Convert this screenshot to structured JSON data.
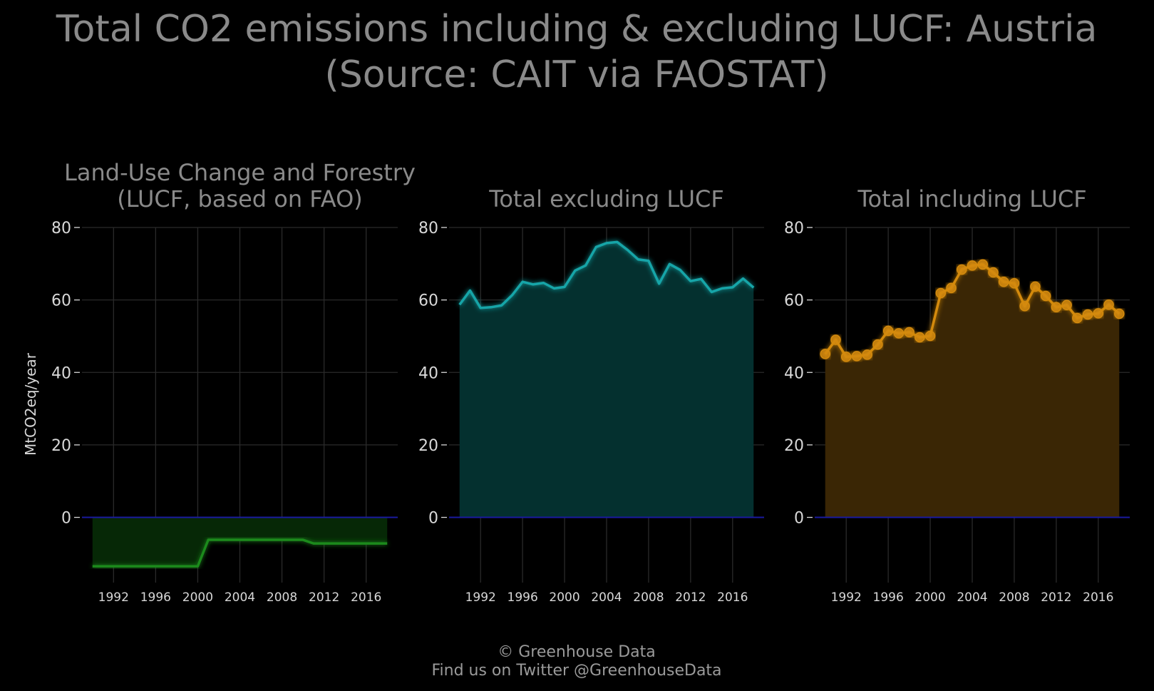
{
  "title_line1": "Total CO2 emissions including & excluding LUCF: Austria",
  "title_line2": "(Source: CAIT via FAOSTAT)",
  "ylabel": "MtCO2eq/year",
  "footer_line1": "© Greenhouse Data",
  "footer_line2": "Find us on Twitter @GreenhouseData",
  "colors": {
    "background": "#000000",
    "title": "#8a8a8a",
    "zero_line": "#1a1aa0",
    "lucf": "#1a8a1a",
    "excl": "#17a5a8",
    "incl": "#d48a10"
  },
  "chart_data": [
    {
      "type": "area",
      "title": "Land-Use Change and Forestry\n(LUCF, based on FAO)",
      "series_name": "Land-Use Change and Forestry (LUCF, based on FAO)",
      "xlim": [
        1989,
        2019
      ],
      "ylim": [
        -18,
        80
      ],
      "yticks": [
        0,
        20,
        40,
        60,
        80
      ],
      "xticks": [
        1992,
        1996,
        2000,
        2004,
        2008,
        2012,
        2016
      ],
      "markers": false,
      "x": [
        1990,
        1991,
        1992,
        1993,
        1994,
        1995,
        1996,
        1997,
        1998,
        1999,
        2000,
        2001,
        2002,
        2003,
        2004,
        2005,
        2006,
        2007,
        2008,
        2009,
        2010,
        2011,
        2012,
        2013,
        2014,
        2015,
        2016,
        2017,
        2018
      ],
      "y": [
        -13.5,
        -13.5,
        -13.5,
        -13.5,
        -13.5,
        -13.5,
        -13.5,
        -13.5,
        -13.5,
        -13.5,
        -13.5,
        -6.2,
        -6.2,
        -6.2,
        -6.2,
        -6.2,
        -6.2,
        -6.2,
        -6.2,
        -6.2,
        -6.2,
        -7.2,
        -7.2,
        -7.2,
        -7.2,
        -7.2,
        -7.2,
        -7.2,
        -7.2
      ]
    },
    {
      "type": "area",
      "title": "Total excluding LUCF",
      "series_name": "Total excluding LUCF",
      "xlim": [
        1989,
        2019
      ],
      "ylim": [
        -18,
        80
      ],
      "yticks": [
        0,
        20,
        40,
        60,
        80
      ],
      "xticks": [
        1992,
        1996,
        2000,
        2004,
        2008,
        2012,
        2016
      ],
      "markers": false,
      "x": [
        1990,
        1991,
        1992,
        1993,
        1994,
        1995,
        1996,
        1997,
        1998,
        1999,
        2000,
        2001,
        2002,
        2003,
        2004,
        2005,
        2006,
        2007,
        2008,
        2009,
        2010,
        2011,
        2012,
        2013,
        2014,
        2015,
        2016,
        2017,
        2018
      ],
      "y": [
        58.7,
        62.6,
        57.8,
        58.0,
        58.5,
        61.3,
        65.0,
        64.3,
        64.7,
        63.2,
        63.6,
        68.1,
        69.5,
        74.6,
        75.7,
        76.0,
        73.8,
        71.2,
        70.8,
        64.5,
        69.9,
        68.3,
        65.2,
        65.8,
        62.2,
        63.2,
        63.5,
        65.9,
        63.4
      ]
    },
    {
      "type": "area",
      "title": "Total including LUCF",
      "series_name": "Total including LUCF",
      "xlim": [
        1989,
        2019
      ],
      "ylim": [
        -18,
        80
      ],
      "yticks": [
        0,
        20,
        40,
        60,
        80
      ],
      "xticks": [
        1992,
        1996,
        2000,
        2004,
        2008,
        2012,
        2016
      ],
      "markers": true,
      "x": [
        1990,
        1991,
        1992,
        1993,
        1994,
        1995,
        1996,
        1997,
        1998,
        1999,
        2000,
        2001,
        2002,
        2003,
        2004,
        2005,
        2006,
        2007,
        2008,
        2009,
        2010,
        2011,
        2012,
        2013,
        2014,
        2015,
        2016,
        2017,
        2018
      ],
      "y": [
        45.1,
        49.0,
        44.3,
        44.5,
        44.9,
        47.7,
        51.5,
        50.8,
        51.1,
        49.7,
        50.1,
        61.9,
        63.3,
        68.4,
        69.5,
        69.8,
        67.6,
        65.0,
        64.6,
        58.3,
        63.7,
        61.1,
        58.0,
        58.6,
        55.0,
        56.0,
        56.3,
        58.7,
        56.2
      ]
    }
  ]
}
